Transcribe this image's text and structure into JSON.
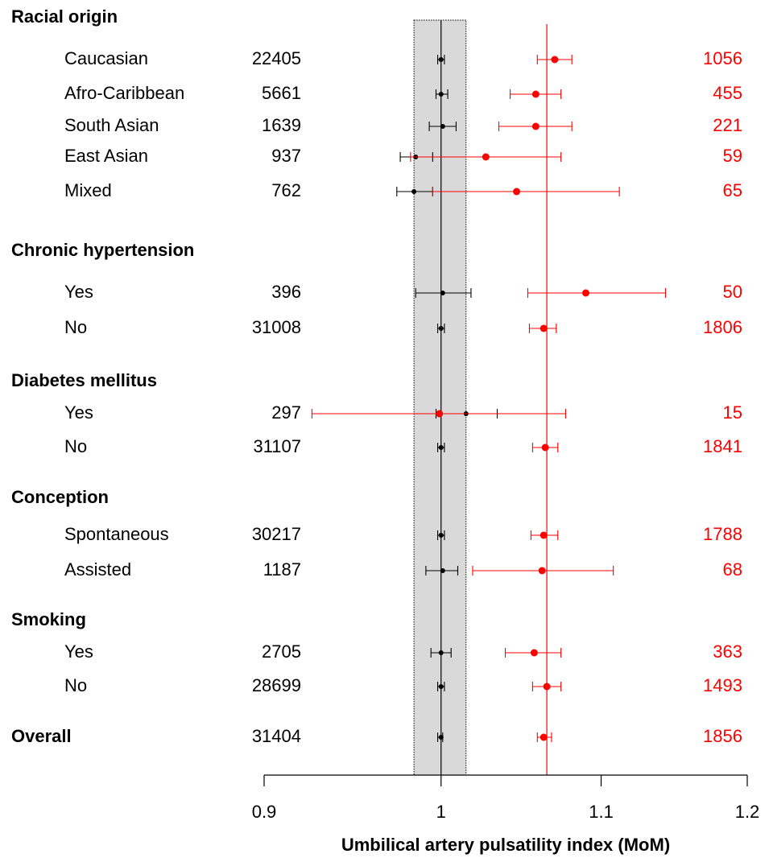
{
  "chart_data": {
    "type": "forest",
    "xlabel": "Umbilical artery pulsatility index (MoM)",
    "xlim": [
      0.9,
      1.2
    ],
    "xticks": [
      0.9,
      1,
      1.1,
      1.2
    ],
    "log_x": true,
    "reference_color": "#000000",
    "case_color": "#ff0000",
    "reference_band": [
      0.984,
      1.015
    ],
    "reference_line": 1,
    "case_line": 1.065,
    "groups": [
      {
        "title": "Racial origin",
        "rows": [
          {
            "label": "Caucasian",
            "n": 22405,
            "events": 1056,
            "reference": [
              1.0,
              0.998,
              1.002
            ],
            "case": [
              1.07,
              1.059,
              1.081
            ]
          },
          {
            "label": "Afro-Caribbean",
            "n": 5661,
            "events": 455,
            "reference": [
              1.0,
              0.997,
              1.004
            ],
            "case": [
              1.058,
              1.042,
              1.074
            ]
          },
          {
            "label": "South Asian",
            "n": 1639,
            "events": 221,
            "reference": [
              1.001,
              0.993,
              1.009
            ],
            "case": [
              1.058,
              1.035,
              1.081
            ]
          },
          {
            "label": "East Asian",
            "n": 937,
            "events": 59,
            "reference": [
              0.985,
              0.976,
              0.995
            ],
            "case": [
              1.027,
              0.982,
              1.074
            ]
          },
          {
            "label": "Mixed",
            "n": 762,
            "events": 65,
            "reference": [
              0.984,
              0.974,
              0.995
            ],
            "case": [
              1.046,
              0.995,
              1.112
            ]
          }
        ]
      },
      {
        "title": "Chronic hypertension",
        "rows": [
          {
            "label": "Yes",
            "n": 396,
            "events": 50,
            "reference": [
              1.001,
              0.985,
              1.018
            ],
            "case": [
              1.09,
              1.053,
              1.143
            ]
          },
          {
            "label": "No",
            "n": 31008,
            "events": 1806,
            "reference": [
              1.0,
              0.998,
              1.002
            ],
            "case": [
              1.063,
              1.054,
              1.071
            ]
          }
        ]
      },
      {
        "title": "Diabetes mellitus",
        "rows": [
          {
            "label": "Yes",
            "n": 297,
            "events": 15,
            "reference": [
              1.015,
              0.997,
              1.034
            ],
            "case": [
              0.999,
              0.926,
              1.077
            ]
          },
          {
            "label": "No",
            "n": 31107,
            "events": 1841,
            "reference": [
              1.0,
              0.998,
              1.002
            ],
            "case": [
              1.064,
              1.056,
              1.072
            ]
          }
        ]
      },
      {
        "title": "Conception",
        "rows": [
          {
            "label": "Spontaneous",
            "n": 30217,
            "events": 1788,
            "reference": [
              1.0,
              0.998,
              1.002
            ],
            "case": [
              1.063,
              1.055,
              1.072
            ]
          },
          {
            "label": "Assisted",
            "n": 1187,
            "events": 68,
            "reference": [
              1.001,
              0.991,
              1.01
            ],
            "case": [
              1.062,
              1.019,
              1.108
            ]
          }
        ]
      },
      {
        "title": "Smoking",
        "rows": [
          {
            "label": "Yes",
            "n": 2705,
            "events": 363,
            "reference": [
              1.0,
              0.994,
              1.006
            ],
            "case": [
              1.057,
              1.039,
              1.074
            ]
          },
          {
            "label": "No",
            "n": 28699,
            "events": 1493,
            "reference": [
              1.0,
              0.998,
              1.002
            ],
            "case": [
              1.065,
              1.056,
              1.074
            ]
          }
        ]
      }
    ],
    "overall": {
      "label": "Overall",
      "n": 31404,
      "events": 1856,
      "reference": [
        1.0,
        0.998,
        1.001
      ],
      "case": [
        1.063,
        1.059,
        1.068
      ]
    }
  }
}
